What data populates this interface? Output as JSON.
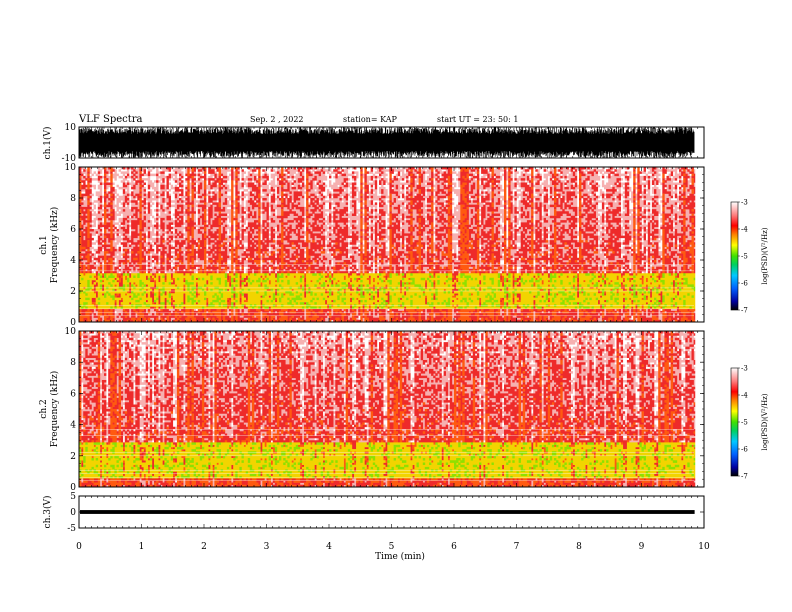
{
  "header": {
    "title": "VLF Spectra",
    "date": "Sep. 2 , 2022",
    "station": "station= KAP",
    "start": "start  UT =   23: 50: 1"
  },
  "chart_data": [
    {
      "type": "line",
      "panel": "ch1-waveform",
      "ylabel": "ch.1(V)",
      "ylim": [
        -10,
        10
      ],
      "yticks": [
        "10",
        "-10"
      ],
      "xlim": [
        0,
        10
      ],
      "color": "#000000",
      "description_of_values": "dense waveform spanning full range"
    },
    {
      "type": "heatmap",
      "panel": "ch1-spectrogram",
      "ylabel_line1": "ch.1",
      "ylabel_line2": "Frequency  (kHz)",
      "ylim": [
        0,
        10
      ],
      "yticks": [
        "0",
        "2",
        "4",
        "6",
        "8",
        "10"
      ],
      "xlim": [
        0,
        10
      ],
      "strong_band_khz": [
        0.8,
        3.2
      ],
      "colorbar": {
        "label": "log(PSD)(V²/Hz)",
        "ticks": [
          "-3",
          "-4",
          "-5",
          "-6",
          "-7"
        ],
        "range": [
          -7,
          -3
        ]
      }
    },
    {
      "type": "heatmap",
      "panel": "ch2-spectrogram",
      "ylabel_line1": "ch.2",
      "ylabel_line2": "Frequency  (kHz)",
      "ylim": [
        0,
        10
      ],
      "yticks": [
        "0",
        "2",
        "4",
        "6",
        "8",
        "10"
      ],
      "xlim": [
        0,
        10
      ],
      "strong_band_khz": [
        0.6,
        2.8
      ],
      "colorbar": {
        "label": "log(PSD)(V²/Hz)",
        "ticks": [
          "-3",
          "-4",
          "-5",
          "-6",
          "-7"
        ],
        "range": [
          -7,
          -3
        ]
      }
    },
    {
      "type": "line",
      "panel": "ch3-waveform",
      "ylabel": "ch.3(V)",
      "ylim": [
        -5,
        5
      ],
      "yticks": [
        "5",
        "0",
        "-5"
      ],
      "xlim": [
        0,
        10
      ],
      "data_end_min": 9.85,
      "band": [
        -0.6,
        0.6
      ],
      "color": "#000000"
    }
  ],
  "xaxis": {
    "label": "Time  (min)",
    "ticks": [
      "0",
      "1",
      "2",
      "3",
      "4",
      "5",
      "6",
      "7",
      "8",
      "9",
      "10"
    ]
  }
}
